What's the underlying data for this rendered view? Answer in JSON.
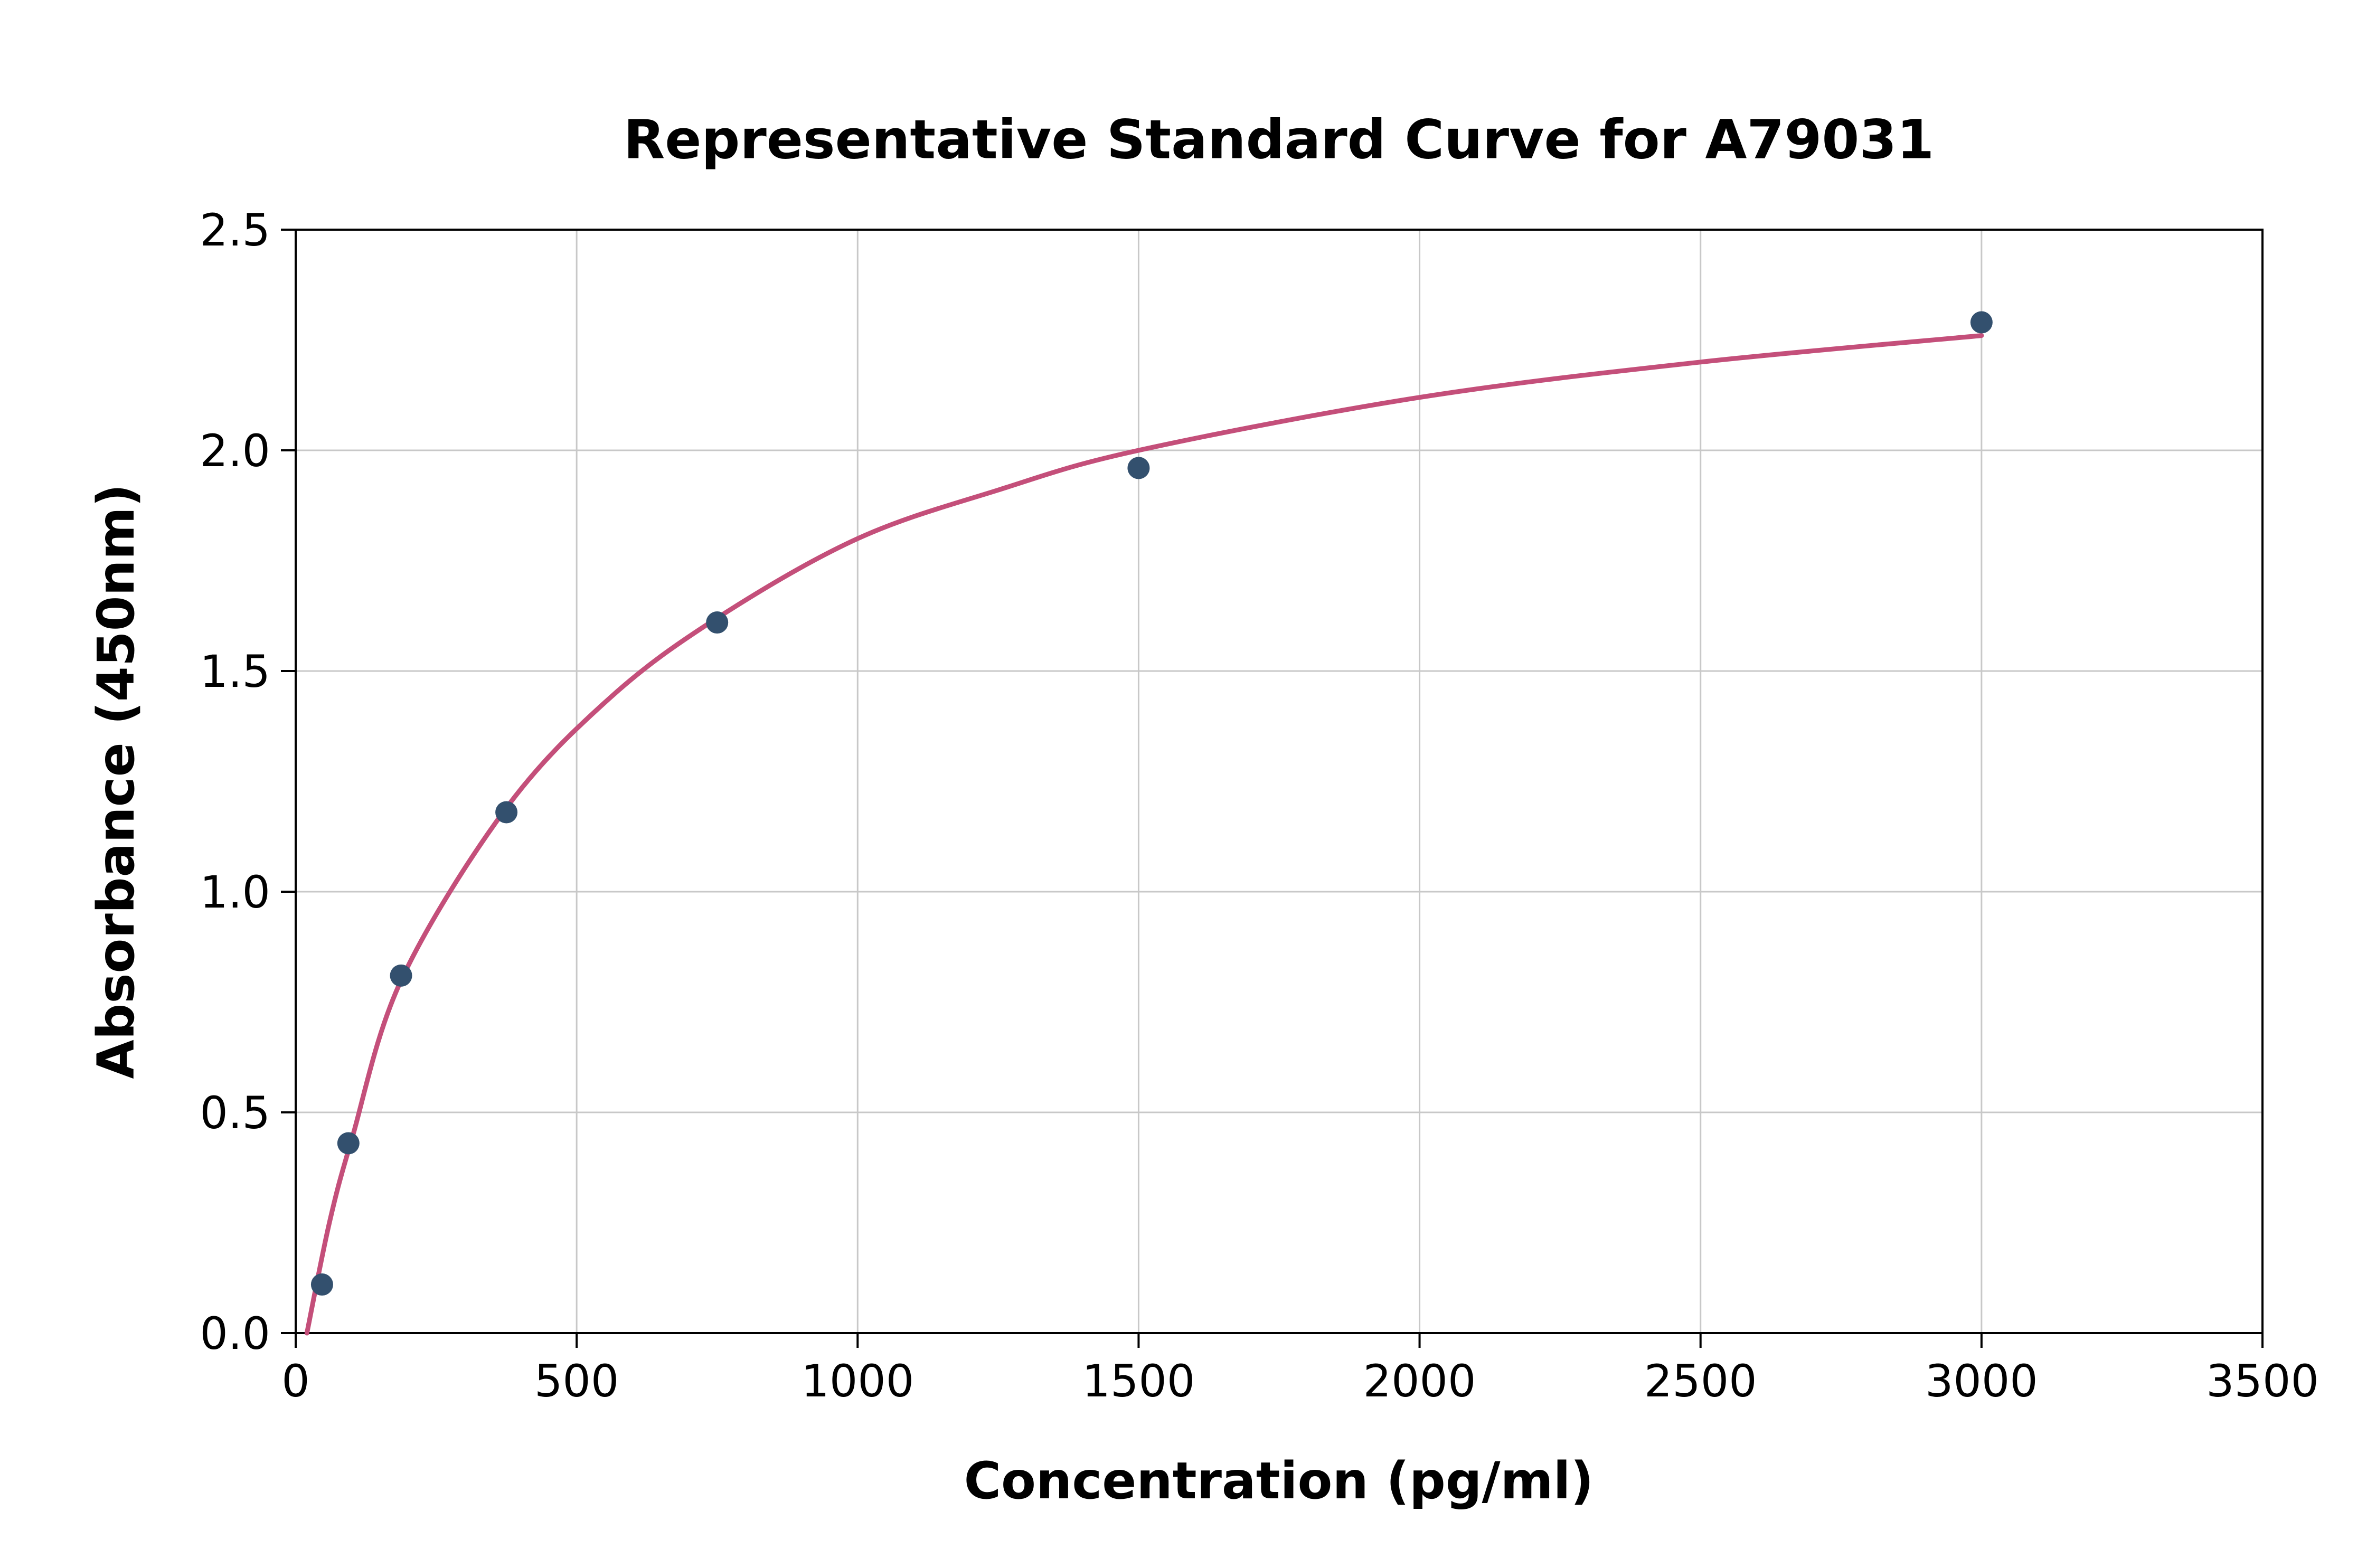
{
  "chart_data": {
    "type": "scatter",
    "title": "Representative Standard Curve for A79031",
    "xlabel": "Concentration (pg/ml)",
    "ylabel": "Absorbance (450nm)",
    "xlim": [
      0,
      3500
    ],
    "ylim": [
      0,
      2.5
    ],
    "x_ticks": [
      0,
      500,
      1000,
      1500,
      2000,
      2500,
      3000,
      3500
    ],
    "x_tick_labels": [
      "0",
      "500",
      "1000",
      "1500",
      "2000",
      "2500",
      "3000",
      "3500"
    ],
    "y_ticks": [
      0,
      0.5,
      1.0,
      1.5,
      2.0,
      2.5
    ],
    "y_tick_labels": [
      "0.0",
      "0.5",
      "1.0",
      "1.5",
      "2.0",
      "2.5"
    ],
    "grid": true,
    "legend": "none",
    "series": [
      {
        "name": "standard-points",
        "type": "scatter",
        "color": "#33506e",
        "points": [
          [
            46.9,
            0.11
          ],
          [
            93.8,
            0.43
          ],
          [
            187.5,
            0.81
          ],
          [
            375,
            1.18
          ],
          [
            750,
            1.61
          ],
          [
            1500,
            1.96
          ],
          [
            3000,
            2.29
          ]
        ]
      },
      {
        "name": "fitted-curve",
        "type": "line",
        "color": "#c44f7a",
        "points": [
          [
            20,
            0.0
          ],
          [
            60,
            0.25
          ],
          [
            100,
            0.44
          ],
          [
            188,
            0.8
          ],
          [
            375,
            1.19
          ],
          [
            560,
            1.44
          ],
          [
            750,
            1.62
          ],
          [
            1000,
            1.8
          ],
          [
            1250,
            1.91
          ],
          [
            1500,
            2.0
          ],
          [
            2000,
            2.12
          ],
          [
            2500,
            2.2
          ],
          [
            3000,
            2.26
          ]
        ]
      }
    ],
    "colors": {
      "point": "#33506e",
      "curve": "#c44f7a",
      "grid": "#c8c8c8",
      "axis": "#000000",
      "background": "#ffffff"
    }
  }
}
